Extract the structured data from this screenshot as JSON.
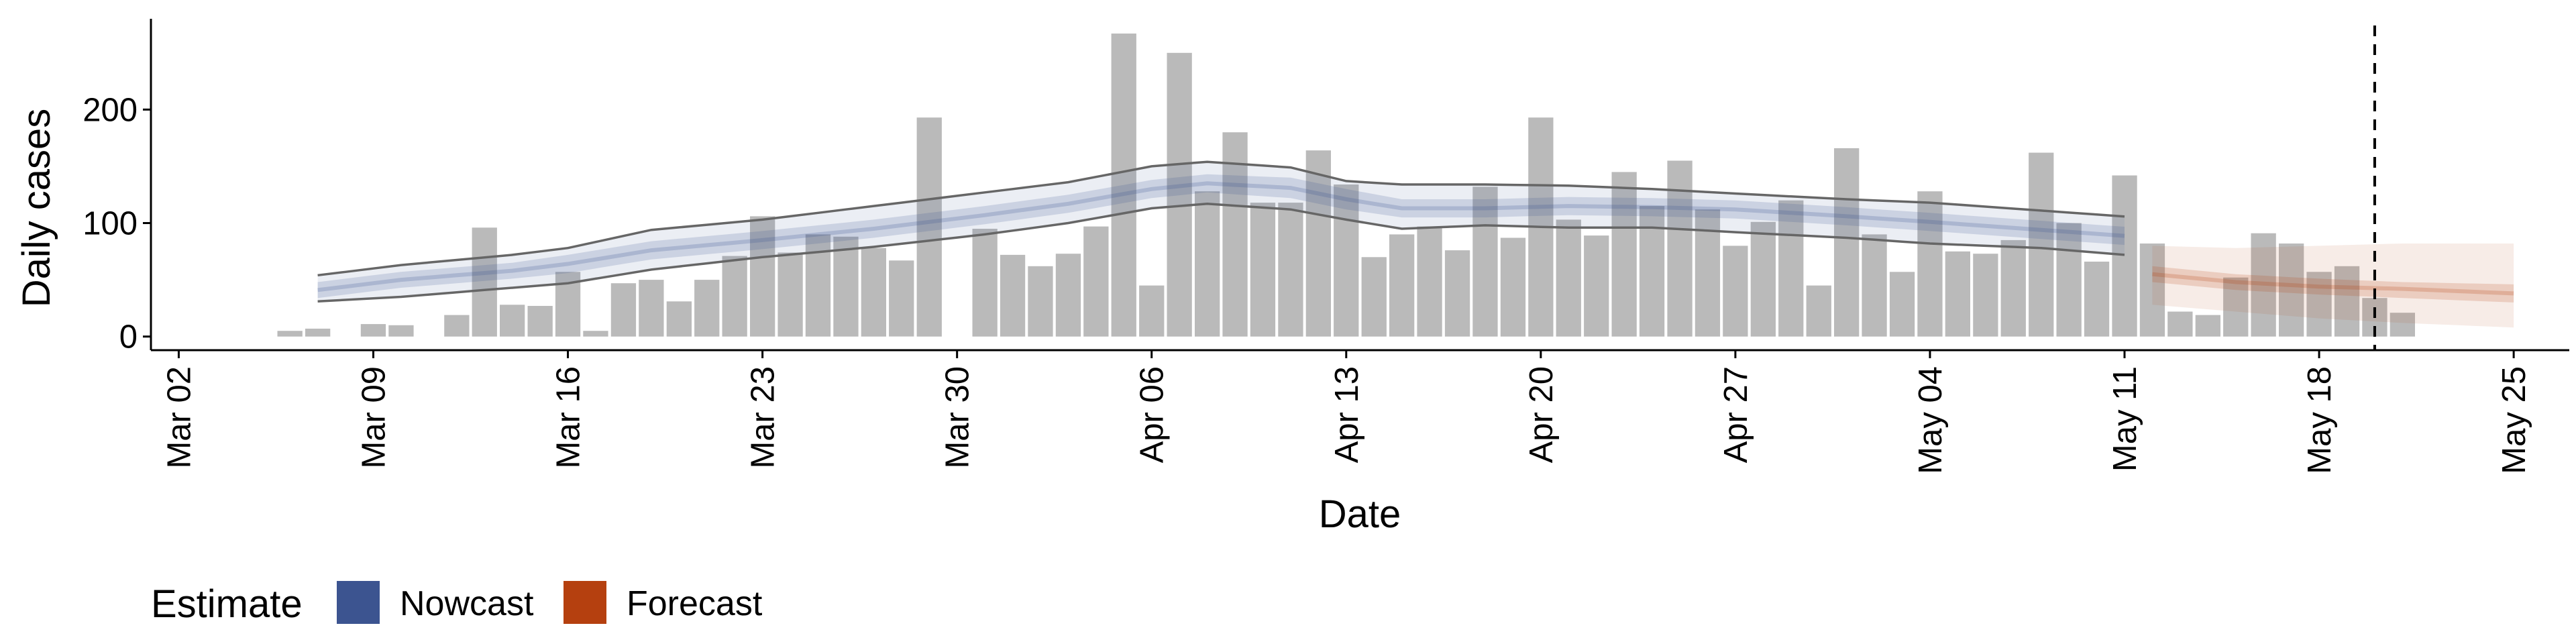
{
  "chart_data": {
    "type": "bar",
    "xlabel": "Date",
    "ylabel": "Daily cases",
    "xlim": [
      "2020-03-01",
      "2020-05-27"
    ],
    "ylim": [
      -12,
      280
    ],
    "y_ticks": [
      0,
      100,
      200
    ],
    "x_ticks": [
      "2020-03-02",
      "2020-03-09",
      "2020-03-16",
      "2020-03-23",
      "2020-03-30",
      "2020-04-06",
      "2020-04-13",
      "2020-04-20",
      "2020-04-27",
      "2020-05-04",
      "2020-05-11",
      "2020-05-18",
      "2020-05-25"
    ],
    "x_tick_labels": [
      "Mar 02",
      "Mar 09",
      "Mar 16",
      "Mar 23",
      "Mar 30",
      "Apr 06",
      "Apr 13",
      "Apr 20",
      "Apr 27",
      "May 04",
      "May 11",
      "May 18",
      "May 25"
    ],
    "grid": false,
    "vline_date": "2020-05-20",
    "bars": {
      "start_date": "2020-03-06",
      "values": [
        5,
        7,
        0,
        11,
        10,
        0,
        19,
        96,
        28,
        27,
        57,
        5,
        47,
        50,
        31,
        50,
        71,
        106,
        74,
        90,
        88,
        78,
        67,
        193,
        0,
        95,
        72,
        62,
        73,
        97,
        267,
        45,
        250,
        128,
        180,
        118,
        118,
        164,
        134,
        70,
        90,
        97,
        76,
        132,
        87,
        193,
        103,
        89,
        145,
        115,
        155,
        112,
        80,
        101,
        120,
        45,
        166,
        90,
        57,
        128,
        75,
        73,
        85,
        162,
        100,
        66,
        142,
        82,
        22,
        19,
        52,
        91,
        82,
        57,
        62,
        34,
        21
      ]
    },
    "series": [
      {
        "name": "Nowcast",
        "color": "#3C5490",
        "start_date": "2020-03-07",
        "end_date": "2020-05-11",
        "median": [
          [
            0,
            41
          ],
          [
            3,
            50
          ],
          [
            7,
            58
          ],
          [
            9,
            64
          ],
          [
            12,
            76
          ],
          [
            16,
            85
          ],
          [
            20,
            95
          ],
          [
            24,
            107
          ],
          [
            27,
            117
          ],
          [
            30,
            130
          ],
          [
            32,
            135
          ],
          [
            35,
            131
          ],
          [
            37,
            121
          ],
          [
            39,
            113
          ],
          [
            42,
            113
          ],
          [
            45,
            115
          ],
          [
            48,
            114
          ],
          [
            51,
            112
          ],
          [
            55,
            106
          ],
          [
            58,
            101
          ],
          [
            62,
            94
          ],
          [
            66,
            87
          ],
          [
            70,
            81
          ],
          [
            74,
            73
          ],
          [
            77,
            64
          ],
          [
            80,
            60
          ],
          [
            82,
            59
          ],
          [
            85,
            60
          ]
        ],
        "inner": [
          [
            0,
            34,
            48
          ],
          [
            3,
            43,
            57
          ],
          [
            7,
            51,
            65
          ],
          [
            9,
            56,
            72
          ],
          [
            12,
            68,
            84
          ],
          [
            16,
            77,
            93
          ],
          [
            20,
            87,
            103
          ],
          [
            24,
            99,
            115
          ],
          [
            27,
            109,
            125
          ],
          [
            30,
            122,
            138
          ],
          [
            32,
            127,
            143
          ],
          [
            35,
            122,
            140
          ],
          [
            37,
            112,
            130
          ],
          [
            39,
            105,
            121
          ],
          [
            42,
            105,
            121
          ],
          [
            45,
            107,
            123
          ],
          [
            48,
            106,
            122
          ],
          [
            51,
            104,
            120
          ],
          [
            55,
            98,
            114
          ],
          [
            58,
            93,
            109
          ],
          [
            62,
            86,
            102
          ],
          [
            66,
            79,
            95
          ],
          [
            70,
            73,
            89
          ],
          [
            74,
            64,
            82
          ],
          [
            77,
            54,
            74
          ],
          [
            80,
            50,
            70
          ],
          [
            82,
            49,
            69
          ],
          [
            85,
            50,
            70
          ]
        ],
        "outer": [
          [
            0,
            31,
            54
          ],
          [
            3,
            35,
            63
          ],
          [
            7,
            43,
            72
          ],
          [
            9,
            47,
            78
          ],
          [
            12,
            59,
            94
          ],
          [
            16,
            70,
            103
          ],
          [
            20,
            79,
            115
          ],
          [
            24,
            90,
            127
          ],
          [
            27,
            100,
            136
          ],
          [
            30,
            113,
            150
          ],
          [
            32,
            117,
            154
          ],
          [
            35,
            112,
            149
          ],
          [
            37,
            103,
            137
          ],
          [
            39,
            95,
            134
          ],
          [
            42,
            98,
            134
          ],
          [
            45,
            96,
            133
          ],
          [
            48,
            96,
            130
          ],
          [
            51,
            92,
            126
          ],
          [
            55,
            87,
            121
          ],
          [
            58,
            82,
            118
          ],
          [
            62,
            78,
            111
          ],
          [
            66,
            70,
            104
          ],
          [
            70,
            65,
            98
          ],
          [
            74,
            55,
            93
          ],
          [
            77,
            46,
            87
          ],
          [
            80,
            43,
            76
          ],
          [
            82,
            40,
            76
          ],
          [
            85,
            38,
            82
          ]
        ]
      },
      {
        "name": "Forecast",
        "color": "#B5400F",
        "start_date": "2020-05-12",
        "end_date": "2020-05-25",
        "median": [
          [
            0,
            55
          ],
          [
            3,
            48
          ],
          [
            6,
            44
          ],
          [
            9,
            42
          ],
          [
            13,
            38
          ]
        ],
        "inner": [
          [
            0,
            48,
            62
          ],
          [
            3,
            41,
            55
          ],
          [
            6,
            37,
            51
          ],
          [
            9,
            34,
            48
          ],
          [
            13,
            30,
            46
          ]
        ],
        "outer": [
          [
            0,
            28,
            80
          ],
          [
            3,
            22,
            78
          ],
          [
            6,
            16,
            80
          ],
          [
            9,
            12,
            82
          ],
          [
            13,
            8,
            82
          ]
        ]
      }
    ],
    "legend": {
      "title": "Estimate",
      "position": "bottom-left",
      "items": [
        "Nowcast",
        "Forecast"
      ]
    }
  }
}
